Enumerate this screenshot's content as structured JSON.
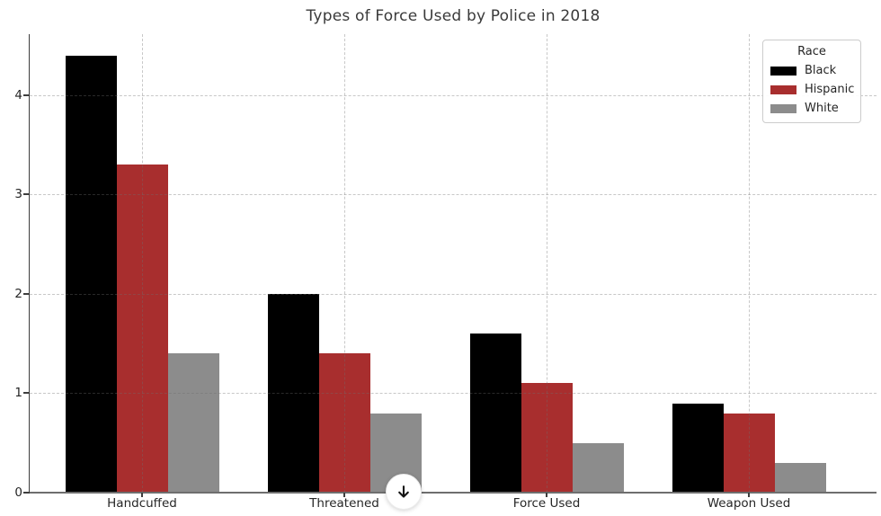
{
  "chart_data": {
    "type": "bar",
    "title": "Types of Force Used by Police in 2018",
    "categories": [
      "Handcuffed",
      "Threatened",
      "Force Used",
      "Weapon Used"
    ],
    "series": [
      {
        "name": "Black",
        "color": "#000000",
        "values": [
          4.4,
          2.0,
          1.6,
          0.9
        ]
      },
      {
        "name": "Hispanic",
        "color": "#a82e2e",
        "values": [
          3.3,
          1.4,
          1.1,
          0.8
        ]
      },
      {
        "name": "White",
        "color": "#8c8c8c",
        "values": [
          1.4,
          0.8,
          0.5,
          0.3
        ]
      }
    ],
    "xlabel": "",
    "ylabel": "",
    "ylim": [
      0,
      4.615
    ],
    "yticks": [
      0,
      1,
      2,
      3,
      4
    ],
    "grid": true,
    "grid_linestyle": "dashed",
    "legend": {
      "title": "Race",
      "position": "upper right"
    }
  },
  "overlay": {
    "scroll_down_button": {
      "icon": "down-arrow-icon"
    }
  }
}
